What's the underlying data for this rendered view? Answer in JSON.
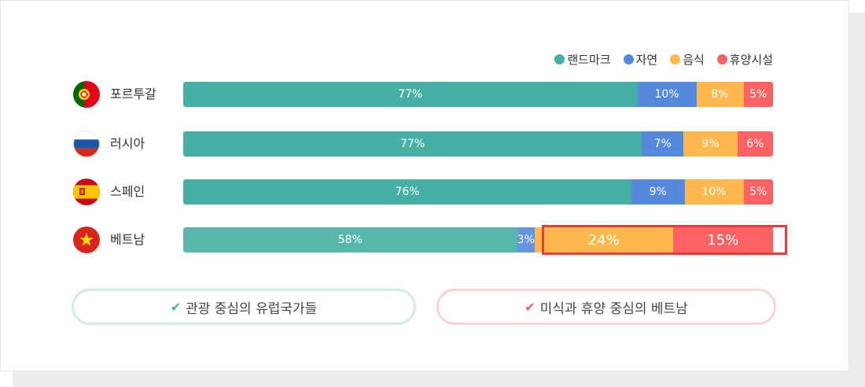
{
  "colors": {
    "landmark": "#46b0a5",
    "nature": "#5589de",
    "food": "#ffb84d",
    "rest": "#ff6262"
  },
  "chart_data": {
    "type": "bar",
    "orientation": "horizontal",
    "stacked": true,
    "title": "",
    "xlabel": "",
    "ylabel": "",
    "xlim": [
      0,
      100
    ],
    "grid": false,
    "legend_position": "top-right",
    "categories": [
      "포르투갈",
      "러시아",
      "스페인",
      "베트남"
    ],
    "series": [
      {
        "name": "랜드마크",
        "color": "#46b0a5",
        "values": [
          77,
          77,
          76,
          58
        ]
      },
      {
        "name": "자연",
        "color": "#5589de",
        "values": [
          10,
          7,
          9,
          3
        ]
      },
      {
        "name": "음식",
        "color": "#ffb84d",
        "values": [
          8,
          9,
          10,
          24
        ]
      },
      {
        "name": "휴양시설",
        "color": "#ff6262",
        "values": [
          5,
          6,
          5,
          15
        ]
      }
    ],
    "highlighted": {
      "category": "베트남",
      "series": [
        "음식",
        "휴양시설"
      ]
    }
  },
  "rows": [
    {
      "country": "포르투갈",
      "flag_icon": "portugal-flag-icon",
      "labels": [
        "77%",
        "10%",
        "8%",
        "5%"
      ]
    },
    {
      "country": "러시아",
      "flag_icon": "russia-flag-icon",
      "labels": [
        "77%",
        "7%",
        "9%",
        "6%"
      ]
    },
    {
      "country": "스페인",
      "flag_icon": "spain-flag-icon",
      "labels": [
        "76%",
        "9%",
        "10%",
        "5%"
      ]
    },
    {
      "country": "베트남",
      "flag_icon": "vietnam-flag-icon",
      "labels": [
        "58%",
        "3%",
        "24%",
        "15%"
      ]
    }
  ],
  "summary": {
    "left": {
      "icon": "check-icon",
      "label": "관광 중심의 유럽국가들",
      "color": "#46b0a5"
    },
    "right": {
      "icon": "check-icon",
      "label": "미식과 휴양 중심의 베트남",
      "color": "#ff5b5b"
    }
  }
}
